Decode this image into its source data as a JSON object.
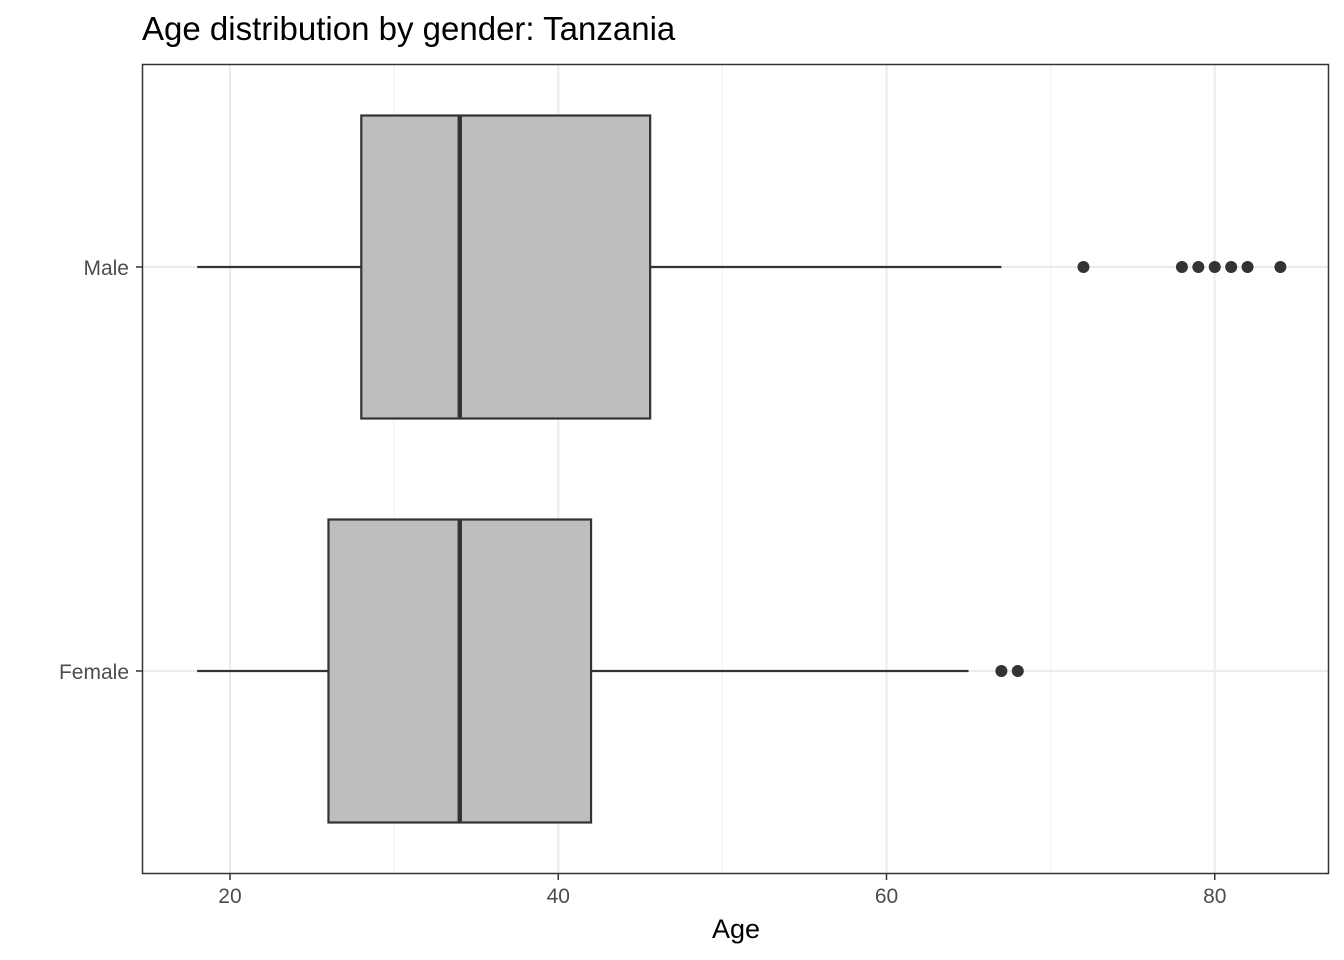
{
  "chart_data": {
    "type": "boxplot",
    "orientation": "horizontal",
    "title": "Age distribution by gender: Tanzania",
    "xlabel": "Age",
    "ylabel": "",
    "xlim": [
      14.7,
      86.9
    ],
    "x_ticks": [
      20,
      40,
      60,
      80
    ],
    "x_tick_labels": [
      "20",
      "40",
      "60",
      "80"
    ],
    "grid": true,
    "categories": [
      "Male",
      "Female"
    ],
    "series": [
      {
        "category": "Male",
        "whisker_low": 18,
        "q1": 28,
        "median": 34,
        "q3": 45.6,
        "whisker_high": 67,
        "outliers": [
          72,
          78,
          79,
          80,
          81,
          82,
          84
        ]
      },
      {
        "category": "Female",
        "whisker_low": 18,
        "q1": 26,
        "median": 34,
        "q3": 42,
        "whisker_high": 65,
        "outliers": [
          67,
          68
        ]
      }
    ],
    "colors": {
      "box_fill": "#bebebe",
      "box_stroke": "#333333",
      "grid_major": "#ebebeb",
      "grid_minor": "#f3f3f3",
      "panel_border": "#333333",
      "tick_text": "#4d4d4d"
    }
  }
}
